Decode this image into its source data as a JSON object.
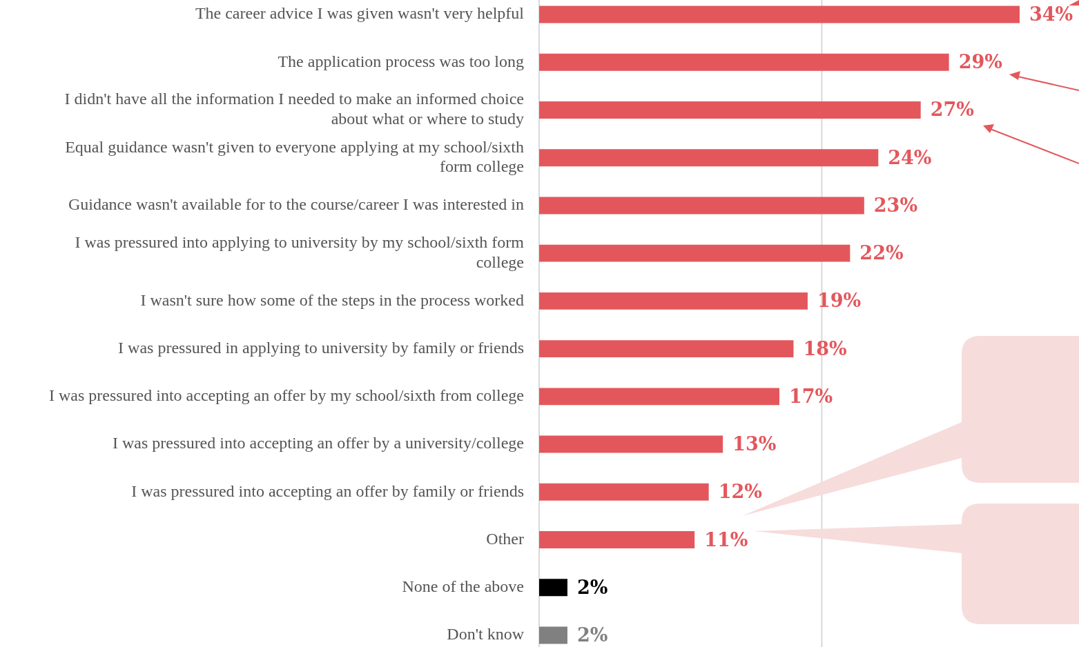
{
  "chart_data": {
    "type": "bar",
    "orientation": "horizontal",
    "categories": [
      "The career advice I was given wasn't very helpful",
      "The application process was too long",
      "I didn't have all the information I needed to make an informed choice about what or where to study",
      "Equal guidance wasn't given to everyone applying at my school/sixth form college",
      "Guidance wasn't available for to the course/career I was interested in",
      "I was pressured into applying to university by my school/sixth form college",
      "I wasn't sure how some of the steps in the process worked",
      "I was pressured in applying to university by family or friends",
      "I was pressured into accepting an offer by my school/sixth from college",
      "I was pressured into accepting an offer by a university/college",
      "I was pressured into accepting an offer by family or friends",
      "Other",
      "None of the above",
      "Don't know"
    ],
    "values": [
      34,
      29,
      27,
      24,
      23,
      22,
      19,
      18,
      17,
      13,
      12,
      11,
      2,
      2
    ],
    "colors": [
      "#e3575c",
      "#e3575c",
      "#e3575c",
      "#e3575c",
      "#e3575c",
      "#e3575c",
      "#e3575c",
      "#e3575c",
      "#e3575c",
      "#e3575c",
      "#e3575c",
      "#e3575c",
      "#000000",
      "#808080"
    ],
    "value_labels": [
      "34%",
      "29%",
      "27%",
      "24%",
      "23%",
      "22%",
      "19%",
      "18%",
      "17%",
      "13%",
      "12%",
      "11%",
      "2%",
      "2%"
    ],
    "ref_lines": [
      {
        "axis": "x",
        "value": 20,
        "color": "#d9d9d9"
      }
    ],
    "tick_labels": "y"
  }
}
